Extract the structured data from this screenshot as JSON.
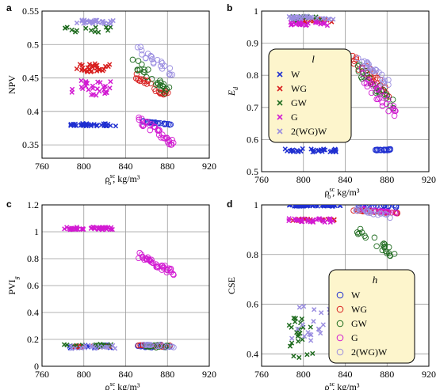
{
  "chart_data": [
    {
      "panel": "a",
      "type": "scatter",
      "ylabel": "NPV",
      "xlabel_base": "ρ",
      "xlabel_sup": "sc",
      "xlabel_sub": "o",
      "xlabel_unit": ", kg/m³",
      "xlim": [
        760,
        920
      ],
      "ylim": [
        0.33,
        0.55
      ],
      "xticks": [
        760,
        800,
        840,
        880,
        920
      ],
      "xtick_labels": [
        "760",
        "800",
        "840",
        "880",
        "920"
      ],
      "yticks": [
        0.35,
        0.4,
        0.45,
        0.5,
        0.55
      ],
      "ytick_labels": [
        "0.35",
        "0.4",
        "0.45",
        "0.5",
        "0.55"
      ],
      "series": [
        {
          "name": "W",
          "color": "#1f2fd0",
          "cross": {
            "x_range": [
              786,
              832
            ],
            "y_range": [
              0.378,
              0.382
            ],
            "n": 34,
            "seed": 11
          },
          "circle": {
            "x_range": [
              856,
              884
            ],
            "y_range": [
              0.379,
              0.386
            ],
            "n": 22,
            "seed": 12
          }
        },
        {
          "name": "WG",
          "color": "#d81e1e",
          "cross": {
            "x_range": [
              792,
              826
            ],
            "y_range": [
              0.459,
              0.472
            ],
            "n": 28,
            "seed": 21
          },
          "circle": {
            "x_range": [
              849,
              882
            ],
            "y_range": [
              0.418,
              0.458
            ],
            "n": 26,
            "seed": 22
          }
        },
        {
          "name": "GW",
          "color": "#1e6b1e",
          "cross": {
            "x_range": [
              780,
              828
            ],
            "y_range": [
              0.518,
              0.526
            ],
            "n": 14,
            "seed": 31
          },
          "circle": {
            "x_range": [
              846,
              884
            ],
            "y_range": [
              0.415,
              0.487
            ],
            "n": 26,
            "seed": 32
          }
        },
        {
          "name": "G",
          "color": "#d21ad2",
          "cross": {
            "x_range": [
              788,
              826
            ],
            "y_range": [
              0.424,
              0.446
            ],
            "n": 28,
            "seed": 41
          },
          "circle": {
            "x_range": [
              852,
              886
            ],
            "y_range": [
              0.346,
              0.395
            ],
            "n": 34,
            "seed": 42
          }
        },
        {
          "name": "2(WG)W",
          "color": "#9a8de0",
          "cross": {
            "x_range": [
              788,
              828
            ],
            "y_range": [
              0.531,
              0.537
            ],
            "n": 26,
            "seed": 51
          },
          "circle": {
            "x_range": [
              850,
              886
            ],
            "y_range": [
              0.447,
              0.505
            ],
            "n": 22,
            "seed": 52
          }
        }
      ]
    },
    {
      "panel": "b",
      "type": "scatter",
      "ylabel_base": "E",
      "ylabel_sub": "d",
      "xlabel_base": "ρ",
      "xlabel_sup": "sc",
      "xlabel_sub": "o",
      "xlabel_unit": ", kg/m³",
      "xlim": [
        760,
        920
      ],
      "ylim": [
        0.5,
        1.0
      ],
      "xticks": [
        760,
        800,
        840,
        880,
        920
      ],
      "xtick_labels": [
        "760",
        "800",
        "840",
        "880",
        "920"
      ],
      "yticks": [
        0.5,
        0.6,
        0.7,
        0.8,
        0.9,
        1.0
      ],
      "ytick_labels": [
        "0.5",
        "0.6",
        "0.7",
        "0.8",
        "0.9",
        "1"
      ],
      "legend": {
        "title": "l",
        "placement": "center-left"
      },
      "series": [
        {
          "name": "W",
          "color": "#1f2fd0",
          "cross": {
            "x_range": [
              782,
              832
            ],
            "y_range": [
              0.561,
              0.572
            ],
            "n": 32,
            "seed": 13
          },
          "circle": {
            "x_range": [
              866,
              886
            ],
            "y_range": [
              0.566,
              0.571
            ],
            "n": 18,
            "seed": 14
          }
        },
        {
          "name": "WG",
          "color": "#d81e1e",
          "cross": {
            "x_range": [
              790,
              828
            ],
            "y_range": [
              0.965,
              0.976
            ],
            "n": 24,
            "seed": 23
          },
          "circle": {
            "x_range": [
              846,
              886
            ],
            "y_range": [
              0.72,
              0.87
            ],
            "n": 28,
            "seed": 24
          }
        },
        {
          "name": "GW",
          "color": "#1e6b1e",
          "cross": {
            "x_range": [
              780,
              822
            ],
            "y_range": [
              0.968,
              0.985
            ],
            "n": 12,
            "seed": 33
          },
          "circle": {
            "x_range": [
              852,
              886
            ],
            "y_range": [
              0.69,
              0.84
            ],
            "n": 26,
            "seed": 34
          }
        },
        {
          "name": "G",
          "color": "#d21ad2",
          "cross": {
            "x_range": [
              786,
              828
            ],
            "y_range": [
              0.955,
              0.968
            ],
            "n": 26,
            "seed": 43
          },
          "circle": {
            "x_range": [
              854,
              890
            ],
            "y_range": [
              0.65,
              0.83
            ],
            "n": 30,
            "seed": 44
          }
        },
        {
          "name": "2(WG)W",
          "color": "#9a8de0",
          "cross": {
            "x_range": [
              786,
              832
            ],
            "y_range": [
              0.974,
              0.986
            ],
            "n": 26,
            "seed": 53
          },
          "circle": {
            "x_range": [
              850,
              882
            ],
            "y_range": [
              0.76,
              0.87
            ],
            "n": 24,
            "seed": 54
          }
        }
      ]
    },
    {
      "panel": "c",
      "type": "scatter",
      "ylabel_base": "PVI",
      "ylabel_sub": "g",
      "xlabel_base": "ρ",
      "xlabel_sup": "sc",
      "xlabel_sub": "o",
      "xlabel_unit": ", kg/m³",
      "xlim": [
        760,
        920
      ],
      "ylim": [
        0,
        1.2
      ],
      "xticks": [
        760,
        800,
        840,
        880,
        920
      ],
      "xtick_labels": [
        "760",
        "800",
        "840",
        "880",
        "920"
      ],
      "yticks": [
        0,
        0.2,
        0.4,
        0.6,
        0.8,
        1.0,
        1.2
      ],
      "ytick_labels": [
        "0",
        "0.2",
        "0.4",
        "0.6",
        "0.8",
        "1",
        "1.2"
      ],
      "series": [
        {
          "name": "W",
          "color": "#1f2fd0",
          "cross": {
            "x_range": [
              786,
              826
            ],
            "y_range": [
              0.135,
              0.16
            ],
            "n": 28,
            "seed": 15
          },
          "circle": {
            "x_range": [
              850,
              886
            ],
            "y_range": [
              0.14,
              0.16
            ],
            "n": 24,
            "seed": 16
          }
        },
        {
          "name": "WG",
          "color": "#d81e1e",
          "cross": {
            "x_range": [
              790,
              826
            ],
            "y_range": [
              0.14,
              0.155
            ],
            "n": 14,
            "seed": 25
          },
          "circle": {
            "x_range": [
              852,
              884
            ],
            "y_range": [
              0.145,
              0.16
            ],
            "n": 14,
            "seed": 26
          }
        },
        {
          "name": "GW",
          "color": "#1e6b1e",
          "cross": {
            "x_range": [
              778,
              826
            ],
            "y_range": [
              0.14,
              0.165
            ],
            "n": 16,
            "seed": 35
          },
          "circle": {
            "x_range": [
              856,
              884
            ],
            "y_range": [
              0.14,
              0.16
            ],
            "n": 14,
            "seed": 36
          }
        },
        {
          "name": "G",
          "color": "#d21ad2",
          "cross": {
            "x_range": [
              780,
              828
            ],
            "y_range": [
              1.015,
              1.035
            ],
            "n": 40,
            "seed": 45
          },
          "circle": {
            "x_range": [
              852,
              886
            ],
            "y_range": [
              0.67,
              0.85
            ],
            "n": 38,
            "seed": 46
          }
        },
        {
          "name": "2(WG)W",
          "color": "#9a8de0",
          "cross": {
            "x_range": [
              786,
              830
            ],
            "y_range": [
              0.13,
              0.16
            ],
            "n": 18,
            "seed": 55
          },
          "circle": {
            "x_range": [
              854,
              886
            ],
            "y_range": [
              0.14,
              0.165
            ],
            "n": 14,
            "seed": 56
          }
        }
      ]
    },
    {
      "panel": "d",
      "type": "scatter",
      "ylabel": "CSE",
      "xlabel_base": "ρ",
      "xlabel_sup": "sc",
      "xlabel_sub": "o",
      "xlabel_unit": ", kg/m³",
      "xlim": [
        760,
        920
      ],
      "ylim": [
        0.35,
        1.0
      ],
      "xticks": [
        760,
        800,
        840,
        880,
        920
      ],
      "xtick_labels": [
        "760",
        "800",
        "840",
        "880",
        "920"
      ],
      "yticks": [
        0.4,
        0.6,
        0.8,
        1.0
      ],
      "ytick_labels": [
        "0.4",
        "0.6",
        "0.8",
        "1"
      ],
      "legend": {
        "title": "h",
        "placement": "bottom-right"
      },
      "series": [
        {
          "name": "W",
          "color": "#1f2fd0",
          "cross": {
            "x_range": [
              786,
              836
            ],
            "y_range": [
              0.994,
              1.0
            ],
            "n": 44,
            "seed": 17
          },
          "circle": {
            "x_range": [
              852,
              890
            ],
            "y_range": [
              0.99,
              1.0
            ],
            "n": 26,
            "seed": 18
          }
        },
        {
          "name": "WG",
          "color": "#d81e1e",
          "cross": {
            "x_range": [
              788,
              830
            ],
            "y_range": [
              0.935,
              0.945
            ],
            "n": 20,
            "seed": 27
          },
          "circle": {
            "x_range": [
              846,
              890
            ],
            "y_range": [
              0.965,
              0.98
            ],
            "n": 28,
            "seed": 28
          }
        },
        {
          "name": "GW",
          "color": "#1e6b1e",
          "cross": {
            "x_range": [
              786,
              816
            ],
            "y_range": [
              0.385,
              0.545
            ],
            "n": 22,
            "seed": 37
          },
          "circle": {
            "x_range": [
              850,
              888
            ],
            "y_range": [
              0.78,
              0.92
            ],
            "n": 22,
            "seed": 38
          }
        },
        {
          "name": "G",
          "color": "#d21ad2",
          "cross": {
            "x_range": [
              786,
              830
            ],
            "y_range": [
              0.93,
              0.945
            ],
            "n": 30,
            "seed": 47
          },
          "circle": {
            "x_range": [
              856,
              890
            ],
            "y_range": [
              0.965,
              0.985
            ],
            "n": 18,
            "seed": 48
          }
        },
        {
          "name": "2(WG)W",
          "color": "#9a8de0",
          "cross": {
            "x_range": [
              788,
              832
            ],
            "y_range": [
              0.45,
              0.6
            ],
            "n": 22,
            "seed": 57
          },
          "circle": {
            "x_range": [
              850,
              890
            ],
            "y_range": [
              0.94,
              0.99
            ],
            "n": 20,
            "seed": 58
          }
        }
      ]
    }
  ]
}
